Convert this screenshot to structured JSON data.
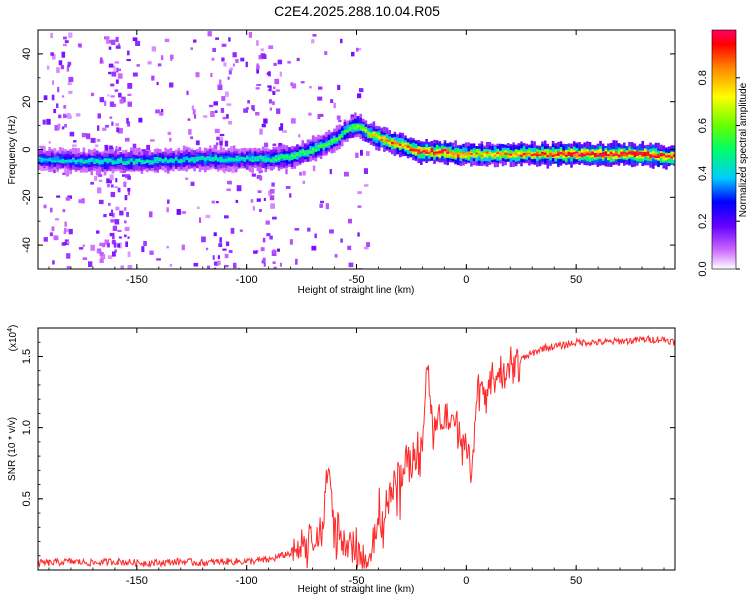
{
  "title": "C2E4.2025.288.10.04.R05",
  "chart_data": [
    {
      "type": "heatmap",
      "name": "spectrogram",
      "xlabel": "Height of straight line (km)",
      "ylabel": "Frequency (Hz)",
      "xlim": [
        -195,
        95
      ],
      "ylim": [
        -50,
        50
      ],
      "x_ticks": [
        -150,
        -100,
        -50,
        0,
        50
      ],
      "y_ticks": [
        -40,
        -20,
        0,
        20,
        40
      ],
      "colorbar": {
        "label": "Normalized spectral amplitude",
        "range": [
          0,
          1
        ],
        "ticks": [
          "0.0",
          "0.2",
          "0.4",
          "0.6",
          "0.8"
        ],
        "colors": [
          "#ffffff",
          "#cc66ff",
          "#6600ff",
          "#0000ff",
          "#00ccff",
          "#00ff66",
          "#66ff00",
          "#ffff00",
          "#ff8800",
          "#ff0000",
          "#ff0066"
        ]
      },
      "ridge": {
        "x": [
          -195,
          -170,
          -150,
          -120,
          -100,
          -90,
          -80,
          -70,
          -60,
          -55,
          -50,
          -45,
          -40,
          -35,
          -30,
          -25,
          -20,
          -15,
          -10,
          -5,
          0,
          10,
          20,
          30,
          40,
          50,
          60,
          70,
          80,
          90,
          95
        ],
        "freq": [
          -4,
          -5,
          -5,
          -4,
          -4,
          -4,
          -3,
          0,
          4,
          8,
          10,
          7,
          5,
          3,
          2,
          0,
          -1,
          -1,
          -1,
          -2,
          -2,
          -2,
          -2,
          -2,
          -2,
          -2,
          -2,
          -2,
          -2,
          -3,
          -3
        ],
        "amplitude": [
          0.4,
          0.45,
          0.45,
          0.45,
          0.45,
          0.5,
          0.55,
          0.55,
          0.55,
          0.55,
          0.6,
          0.7,
          0.8,
          0.85,
          0.85,
          0.9,
          0.95,
          0.95,
          0.95,
          0.85,
          0.8,
          0.8,
          0.85,
          0.9,
          0.95,
          1.0,
          1.0,
          1.0,
          1.0,
          0.95,
          0.95
        ]
      }
    },
    {
      "type": "line",
      "name": "snr",
      "xlabel": "Height of straight line (km)",
      "ylabel": "SNR (10 * v/v)",
      "y_multiplier": "(x10",
      "y_multiplier_exp": "4",
      "y_multiplier_close": ")",
      "xlim": [
        -195,
        95
      ],
      "ylim": [
        0,
        1.7
      ],
      "x_ticks": [
        -150,
        -100,
        -50,
        0,
        50
      ],
      "y_ticks": [
        "0.5",
        "1.0",
        "1.5"
      ],
      "color": "#ff2a2a",
      "series": [
        {
          "name": "SNR",
          "x": [
            -195,
            -190,
            -180,
            -170,
            -160,
            -150,
            -140,
            -130,
            -120,
            -110,
            -100,
            -90,
            -80,
            -75,
            -70,
            -65,
            -63,
            -60,
            -55,
            -50,
            -45,
            -42,
            -40,
            -35,
            -30,
            -25,
            -20,
            -18,
            -15,
            -10,
            -5,
            0,
            2,
            5,
            10,
            15,
            20,
            25,
            30,
            35,
            40,
            45,
            50,
            55,
            60,
            65,
            70,
            75,
            80,
            85,
            90,
            95
          ],
          "y": [
            0.05,
            0.05,
            0.06,
            0.05,
            0.06,
            0.05,
            0.05,
            0.06,
            0.05,
            0.06,
            0.06,
            0.07,
            0.12,
            0.16,
            0.2,
            0.3,
            0.75,
            0.3,
            0.18,
            0.1,
            0.1,
            0.15,
            0.3,
            0.5,
            0.7,
            0.8,
            0.9,
            1.4,
            1.0,
            1.1,
            1.0,
            0.9,
            0.6,
            1.2,
            1.3,
            1.35,
            1.42,
            1.48,
            1.52,
            1.56,
            1.57,
            1.58,
            1.6,
            1.6,
            1.6,
            1.6,
            1.61,
            1.61,
            1.62,
            1.62,
            1.62,
            1.6
          ]
        }
      ]
    }
  ]
}
